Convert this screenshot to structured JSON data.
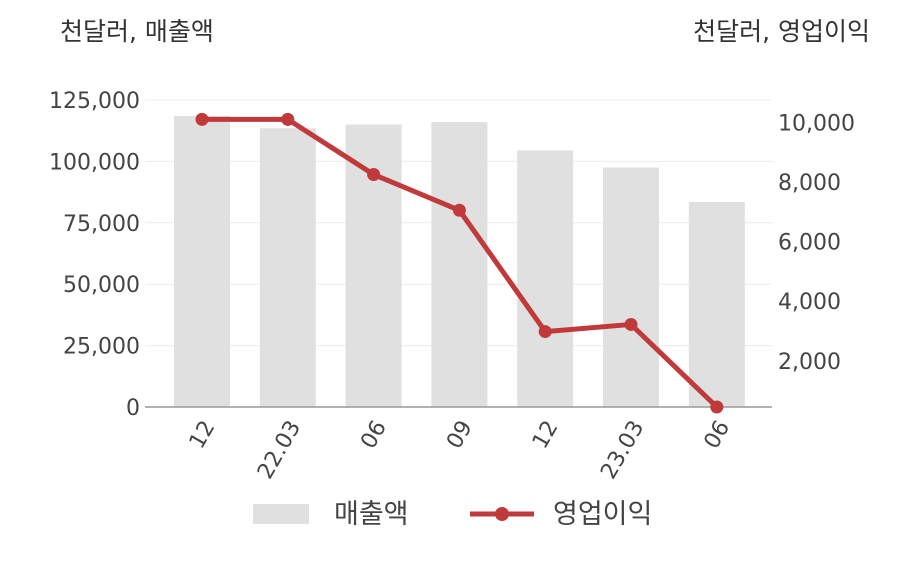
{
  "left_unit": "천달러, 매출액",
  "right_unit": "천달러, 영업이익",
  "chart_data": {
    "type": "bar+line",
    "categories": [
      "12",
      "22.03",
      "06",
      "09",
      "12",
      "23.03",
      "06"
    ],
    "series": [
      {
        "name": "매출액",
        "type": "bar",
        "axis": "left",
        "color": "#e0e0e0",
        "values": [
          118500,
          113500,
          115000,
          116000,
          104500,
          97500,
          83500
        ]
      },
      {
        "name": "영업이익",
        "type": "line",
        "axis": "right",
        "color": "#c0393b",
        "values": [
          10100,
          10100,
          8250,
          7050,
          2980,
          3220,
          450
        ]
      }
    ],
    "left_axis": {
      "min": 0,
      "max": 125000,
      "ticks": [
        "0",
        "25,000",
        "50,000",
        "75,000",
        "100,000",
        "125,000"
      ]
    },
    "right_axis": {
      "min": 450,
      "max": 10750,
      "ticks": [
        "2,000",
        "4,000",
        "6,000",
        "8,000",
        "10,000"
      ],
      "tick_values": [
        2000,
        4000,
        6000,
        8000,
        10000
      ]
    },
    "legend_position": "bottom",
    "grid": true
  }
}
